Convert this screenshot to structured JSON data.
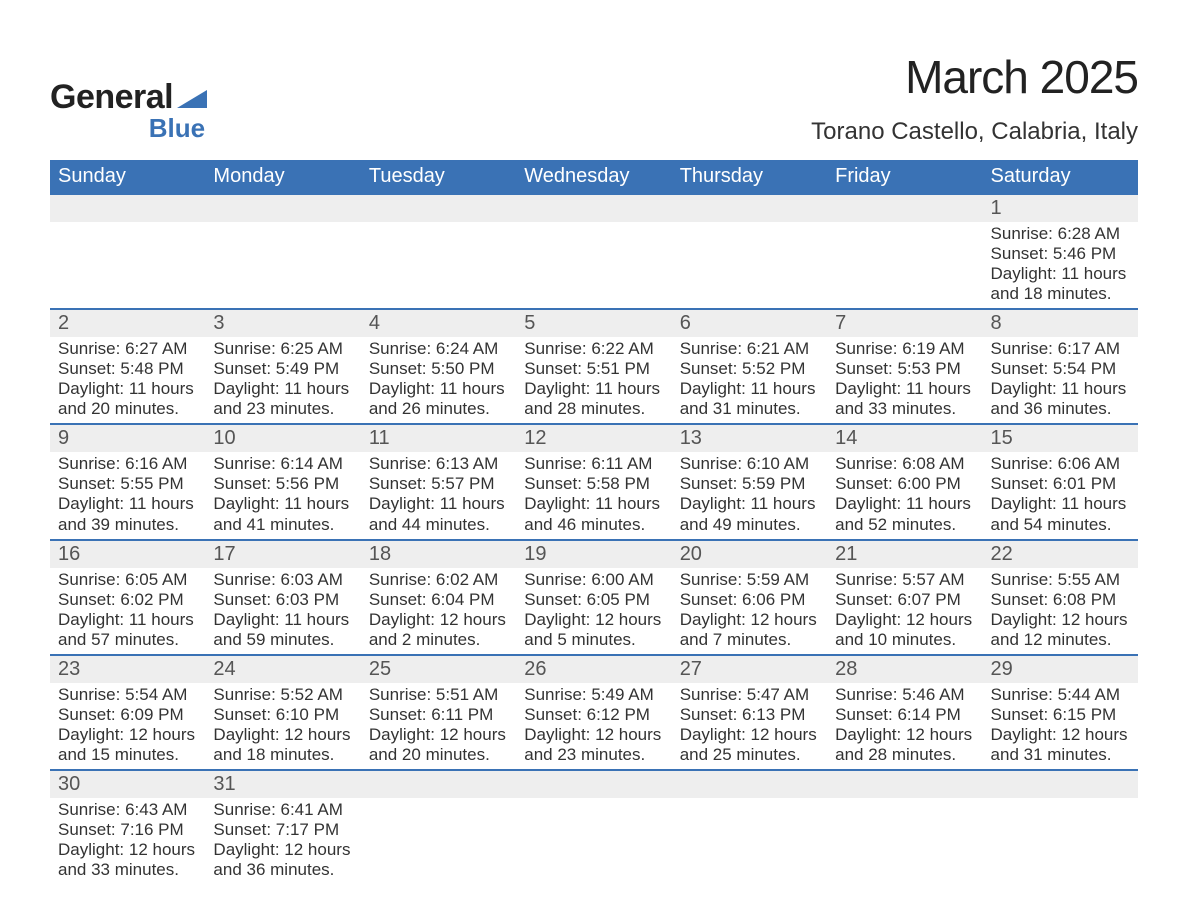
{
  "brand": {
    "name_general": "General",
    "name_blue": "Blue",
    "text_color": "#222222",
    "blue_color": "#3a72b5"
  },
  "title": "March 2025",
  "location": "Torano Castello, Calabria, Italy",
  "colors": {
    "header_bg": "#3a72b5",
    "header_text": "#ffffff",
    "band_bg": "#eeeeee",
    "body_text": "#333333",
    "week_border": "#3a72b5"
  },
  "fonts": {
    "title_size": 46,
    "location_size": 24,
    "dow_size": 20,
    "daynum_size": 20,
    "detail_size": 17
  },
  "days_of_week": [
    "Sunday",
    "Monday",
    "Tuesday",
    "Wednesday",
    "Thursday",
    "Friday",
    "Saturday"
  ],
  "weeks": [
    [
      null,
      null,
      null,
      null,
      null,
      null,
      {
        "n": "1",
        "sunrise": "Sunrise: 6:28 AM",
        "sunset": "Sunset: 5:46 PM",
        "dl1": "Daylight: 11 hours",
        "dl2": "and 18 minutes."
      }
    ],
    [
      {
        "n": "2",
        "sunrise": "Sunrise: 6:27 AM",
        "sunset": "Sunset: 5:48 PM",
        "dl1": "Daylight: 11 hours",
        "dl2": "and 20 minutes."
      },
      {
        "n": "3",
        "sunrise": "Sunrise: 6:25 AM",
        "sunset": "Sunset: 5:49 PM",
        "dl1": "Daylight: 11 hours",
        "dl2": "and 23 minutes."
      },
      {
        "n": "4",
        "sunrise": "Sunrise: 6:24 AM",
        "sunset": "Sunset: 5:50 PM",
        "dl1": "Daylight: 11 hours",
        "dl2": "and 26 minutes."
      },
      {
        "n": "5",
        "sunrise": "Sunrise: 6:22 AM",
        "sunset": "Sunset: 5:51 PM",
        "dl1": "Daylight: 11 hours",
        "dl2": "and 28 minutes."
      },
      {
        "n": "6",
        "sunrise": "Sunrise: 6:21 AM",
        "sunset": "Sunset: 5:52 PM",
        "dl1": "Daylight: 11 hours",
        "dl2": "and 31 minutes."
      },
      {
        "n": "7",
        "sunrise": "Sunrise: 6:19 AM",
        "sunset": "Sunset: 5:53 PM",
        "dl1": "Daylight: 11 hours",
        "dl2": "and 33 minutes."
      },
      {
        "n": "8",
        "sunrise": "Sunrise: 6:17 AM",
        "sunset": "Sunset: 5:54 PM",
        "dl1": "Daylight: 11 hours",
        "dl2": "and 36 minutes."
      }
    ],
    [
      {
        "n": "9",
        "sunrise": "Sunrise: 6:16 AM",
        "sunset": "Sunset: 5:55 PM",
        "dl1": "Daylight: 11 hours",
        "dl2": "and 39 minutes."
      },
      {
        "n": "10",
        "sunrise": "Sunrise: 6:14 AM",
        "sunset": "Sunset: 5:56 PM",
        "dl1": "Daylight: 11 hours",
        "dl2": "and 41 minutes."
      },
      {
        "n": "11",
        "sunrise": "Sunrise: 6:13 AM",
        "sunset": "Sunset: 5:57 PM",
        "dl1": "Daylight: 11 hours",
        "dl2": "and 44 minutes."
      },
      {
        "n": "12",
        "sunrise": "Sunrise: 6:11 AM",
        "sunset": "Sunset: 5:58 PM",
        "dl1": "Daylight: 11 hours",
        "dl2": "and 46 minutes."
      },
      {
        "n": "13",
        "sunrise": "Sunrise: 6:10 AM",
        "sunset": "Sunset: 5:59 PM",
        "dl1": "Daylight: 11 hours",
        "dl2": "and 49 minutes."
      },
      {
        "n": "14",
        "sunrise": "Sunrise: 6:08 AM",
        "sunset": "Sunset: 6:00 PM",
        "dl1": "Daylight: 11 hours",
        "dl2": "and 52 minutes."
      },
      {
        "n": "15",
        "sunrise": "Sunrise: 6:06 AM",
        "sunset": "Sunset: 6:01 PM",
        "dl1": "Daylight: 11 hours",
        "dl2": "and 54 minutes."
      }
    ],
    [
      {
        "n": "16",
        "sunrise": "Sunrise: 6:05 AM",
        "sunset": "Sunset: 6:02 PM",
        "dl1": "Daylight: 11 hours",
        "dl2": "and 57 minutes."
      },
      {
        "n": "17",
        "sunrise": "Sunrise: 6:03 AM",
        "sunset": "Sunset: 6:03 PM",
        "dl1": "Daylight: 11 hours",
        "dl2": "and 59 minutes."
      },
      {
        "n": "18",
        "sunrise": "Sunrise: 6:02 AM",
        "sunset": "Sunset: 6:04 PM",
        "dl1": "Daylight: 12 hours",
        "dl2": "and 2 minutes."
      },
      {
        "n": "19",
        "sunrise": "Sunrise: 6:00 AM",
        "sunset": "Sunset: 6:05 PM",
        "dl1": "Daylight: 12 hours",
        "dl2": "and 5 minutes."
      },
      {
        "n": "20",
        "sunrise": "Sunrise: 5:59 AM",
        "sunset": "Sunset: 6:06 PM",
        "dl1": "Daylight: 12 hours",
        "dl2": "and 7 minutes."
      },
      {
        "n": "21",
        "sunrise": "Sunrise: 5:57 AM",
        "sunset": "Sunset: 6:07 PM",
        "dl1": "Daylight: 12 hours",
        "dl2": "and 10 minutes."
      },
      {
        "n": "22",
        "sunrise": "Sunrise: 5:55 AM",
        "sunset": "Sunset: 6:08 PM",
        "dl1": "Daylight: 12 hours",
        "dl2": "and 12 minutes."
      }
    ],
    [
      {
        "n": "23",
        "sunrise": "Sunrise: 5:54 AM",
        "sunset": "Sunset: 6:09 PM",
        "dl1": "Daylight: 12 hours",
        "dl2": "and 15 minutes."
      },
      {
        "n": "24",
        "sunrise": "Sunrise: 5:52 AM",
        "sunset": "Sunset: 6:10 PM",
        "dl1": "Daylight: 12 hours",
        "dl2": "and 18 minutes."
      },
      {
        "n": "25",
        "sunrise": "Sunrise: 5:51 AM",
        "sunset": "Sunset: 6:11 PM",
        "dl1": "Daylight: 12 hours",
        "dl2": "and 20 minutes."
      },
      {
        "n": "26",
        "sunrise": "Sunrise: 5:49 AM",
        "sunset": "Sunset: 6:12 PM",
        "dl1": "Daylight: 12 hours",
        "dl2": "and 23 minutes."
      },
      {
        "n": "27",
        "sunrise": "Sunrise: 5:47 AM",
        "sunset": "Sunset: 6:13 PM",
        "dl1": "Daylight: 12 hours",
        "dl2": "and 25 minutes."
      },
      {
        "n": "28",
        "sunrise": "Sunrise: 5:46 AM",
        "sunset": "Sunset: 6:14 PM",
        "dl1": "Daylight: 12 hours",
        "dl2": "and 28 minutes."
      },
      {
        "n": "29",
        "sunrise": "Sunrise: 5:44 AM",
        "sunset": "Sunset: 6:15 PM",
        "dl1": "Daylight: 12 hours",
        "dl2": "and 31 minutes."
      }
    ],
    [
      {
        "n": "30",
        "sunrise": "Sunrise: 6:43 AM",
        "sunset": "Sunset: 7:16 PM",
        "dl1": "Daylight: 12 hours",
        "dl2": "and 33 minutes."
      },
      {
        "n": "31",
        "sunrise": "Sunrise: 6:41 AM",
        "sunset": "Sunset: 7:17 PM",
        "dl1": "Daylight: 12 hours",
        "dl2": "and 36 minutes."
      },
      null,
      null,
      null,
      null,
      null
    ]
  ]
}
